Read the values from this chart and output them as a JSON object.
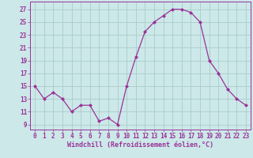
{
  "x": [
    0,
    1,
    2,
    3,
    4,
    5,
    6,
    7,
    8,
    9,
    10,
    11,
    12,
    13,
    14,
    15,
    16,
    17,
    18,
    19,
    20,
    21,
    22,
    23
  ],
  "y": [
    15,
    13,
    14,
    13,
    11,
    12,
    12,
    9.5,
    10,
    9,
    15,
    19.5,
    23.5,
    25,
    26,
    27,
    27,
    26.5,
    25,
    19,
    17,
    14.5,
    13,
    12
  ],
  "line_color": "#993399",
  "marker": "D",
  "marker_size": 2.0,
  "bg_color": "#cce8e8",
  "grid_color": "#aacccc",
  "xlabel": "Windchill (Refroidissement éolien,°C)",
  "xlabel_fontsize": 6.0,
  "yticks": [
    9,
    11,
    13,
    15,
    17,
    19,
    21,
    23,
    25,
    27
  ],
  "xticks": [
    0,
    1,
    2,
    3,
    4,
    5,
    6,
    7,
    8,
    9,
    10,
    11,
    12,
    13,
    14,
    15,
    16,
    17,
    18,
    19,
    20,
    21,
    22,
    23
  ],
  "ylim": [
    8.2,
    28.2
  ],
  "xlim": [
    -0.5,
    23.5
  ],
  "tick_fontsize": 5.5
}
